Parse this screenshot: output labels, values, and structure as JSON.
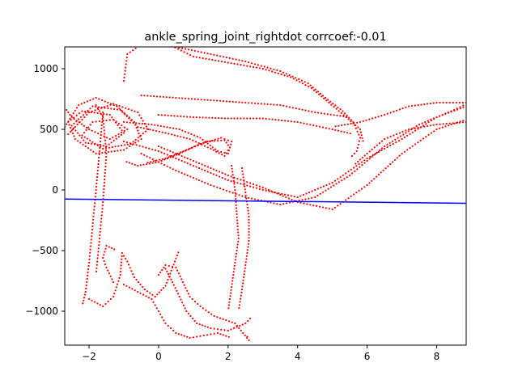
{
  "chart_data": {
    "type": "scatter",
    "title": "ankle_spring_joint_rightdot corrcoef:-0.01",
    "xlabel": "",
    "ylabel": "",
    "xlim": [
      -2.7,
      8.85
    ],
    "ylim": [
      -1280,
      1180
    ],
    "x_ticks": [
      {
        "v": -2,
        "label": "−2"
      },
      {
        "v": 0,
        "label": "0"
      },
      {
        "v": 2,
        "label": "2"
      },
      {
        "v": 4,
        "label": "4"
      },
      {
        "v": 6,
        "label": "6"
      },
      {
        "v": 8,
        "label": "8"
      }
    ],
    "y_ticks": [
      {
        "v": -1000,
        "label": "−1000"
      },
      {
        "v": -500,
        "label": "−500"
      },
      {
        "v": 0,
        "label": "0"
      },
      {
        "v": 500,
        "label": "500"
      },
      {
        "v": 1000,
        "label": "1000"
      }
    ],
    "grid": false,
    "point_color": "#ff0000",
    "line_color": "#0000ff",
    "fit_line": {
      "x": [
        -2.7,
        8.85
      ],
      "y": [
        -75,
        -110
      ]
    },
    "scatter_paths": [
      {
        "name": "upper-left-loops",
        "points": [
          [
            -2.7,
            520
          ],
          [
            -2.3,
            700
          ],
          [
            -1.8,
            760
          ],
          [
            -1.2,
            690
          ],
          [
            -0.7,
            560
          ],
          [
            -0.5,
            420
          ],
          [
            -1.0,
            330
          ],
          [
            -1.8,
            300
          ],
          [
            -2.4,
            420
          ],
          [
            -2.6,
            560
          ],
          [
            -2.2,
            650
          ],
          [
            -1.4,
            620
          ],
          [
            -1.0,
            470
          ],
          [
            -1.5,
            360
          ],
          [
            -2.1,
            390
          ],
          [
            -2.5,
            530
          ],
          [
            -1.9,
            690
          ],
          [
            -1.1,
            660
          ],
          [
            -0.6,
            520
          ]
        ]
      },
      {
        "name": "upper-left-loops-2",
        "points": [
          [
            -2.6,
            460
          ],
          [
            -2.0,
            640
          ],
          [
            -1.3,
            710
          ],
          [
            -0.6,
            640
          ],
          [
            -0.3,
            500
          ],
          [
            -0.8,
            380
          ],
          [
            -1.6,
            340
          ],
          [
            -2.2,
            450
          ],
          [
            -1.9,
            560
          ],
          [
            -1.3,
            580
          ],
          [
            -0.9,
            500
          ],
          [
            -1.4,
            420
          ],
          [
            -2.0,
            500
          ],
          [
            -2.5,
            600
          ],
          [
            -2.7,
            680
          ]
        ]
      },
      {
        "name": "loop-to-2",
        "points": [
          [
            -1.0,
            560
          ],
          [
            -0.2,
            540
          ],
          [
            0.6,
            500
          ],
          [
            1.2,
            430
          ],
          [
            1.7,
            320
          ],
          [
            2.0,
            300
          ],
          [
            2.1,
            400
          ],
          [
            1.8,
            430
          ],
          [
            1.2,
            380
          ],
          [
            0.6,
            300
          ],
          [
            0.0,
            230
          ],
          [
            -0.6,
            200
          ],
          [
            -1.0,
            240
          ]
        ]
      },
      {
        "name": "loop-to-2b",
        "points": [
          [
            -0.6,
            520
          ],
          [
            0.2,
            470
          ],
          [
            0.9,
            420
          ],
          [
            1.5,
            340
          ],
          [
            1.9,
            280
          ],
          [
            2.05,
            350
          ],
          [
            1.9,
            410
          ],
          [
            1.4,
            400
          ],
          [
            0.8,
            330
          ],
          [
            0.2,
            260
          ],
          [
            -0.4,
            220
          ]
        ]
      },
      {
        "name": "top-arc-1",
        "points": [
          [
            -1.0,
            900
          ],
          [
            -0.9,
            1120
          ],
          [
            -0.5,
            1200
          ],
          [
            0.5,
            1180
          ],
          [
            1.5,
            1120
          ],
          [
            2.5,
            1060
          ],
          [
            3.5,
            980
          ],
          [
            4.3,
            880
          ],
          [
            4.8,
            760
          ],
          [
            5.3,
            650
          ],
          [
            5.6,
            560
          ],
          [
            5.8,
            430
          ],
          [
            5.7,
            320
          ],
          [
            5.5,
            260
          ]
        ]
      },
      {
        "name": "top-arc-2",
        "points": [
          [
            0.3,
            1200
          ],
          [
            1.0,
            1100
          ],
          [
            2.0,
            1050
          ],
          [
            3.0,
            1000
          ],
          [
            3.8,
            930
          ],
          [
            4.4,
            840
          ],
          [
            4.9,
            720
          ],
          [
            5.4,
            600
          ],
          [
            5.8,
            500
          ],
          [
            5.9,
            380
          ]
        ]
      },
      {
        "name": "mid-band-1",
        "points": [
          [
            -0.5,
            780
          ],
          [
            0.5,
            760
          ],
          [
            1.5,
            740
          ],
          [
            2.5,
            720
          ],
          [
            3.5,
            700
          ],
          [
            4.5,
            640
          ],
          [
            5.5,
            600
          ]
        ]
      },
      {
        "name": "mid-band-2",
        "points": [
          [
            0.0,
            620
          ],
          [
            1.0,
            600
          ],
          [
            2.0,
            590
          ],
          [
            3.0,
            590
          ],
          [
            4.0,
            560
          ],
          [
            5.0,
            500
          ],
          [
            5.6,
            460
          ]
        ]
      },
      {
        "name": "to-right-1",
        "points": [
          [
            -1.0,
            400
          ],
          [
            0.0,
            320
          ],
          [
            1.0,
            200
          ],
          [
            2.0,
            80
          ],
          [
            3.0,
            0
          ],
          [
            4.0,
            -60
          ],
          [
            5.0,
            60
          ],
          [
            6.0,
            260
          ],
          [
            7.0,
            420
          ],
          [
            8.0,
            600
          ],
          [
            8.85,
            690
          ]
        ]
      },
      {
        "name": "to-right-2",
        "points": [
          [
            -0.5,
            300
          ],
          [
            0.5,
            160
          ],
          [
            1.5,
            40
          ],
          [
            2.5,
            -60
          ],
          [
            3.5,
            -120
          ],
          [
            4.5,
            -60
          ],
          [
            5.5,
            120
          ],
          [
            6.5,
            360
          ],
          [
            7.5,
            540
          ],
          [
            8.5,
            660
          ],
          [
            8.85,
            710
          ]
        ]
      },
      {
        "name": "to-right-3",
        "points": [
          [
            0.0,
            360
          ],
          [
            1.0,
            240
          ],
          [
            2.0,
            120
          ],
          [
            3.0,
            20
          ],
          [
            4.0,
            -100
          ],
          [
            5.0,
            -160
          ],
          [
            6.0,
            40
          ],
          [
            7.0,
            300
          ],
          [
            8.0,
            500
          ],
          [
            8.85,
            580
          ]
        ]
      },
      {
        "name": "right-return-1",
        "points": [
          [
            8.85,
            720
          ],
          [
            8.0,
            720
          ],
          [
            7.2,
            690
          ],
          [
            6.5,
            620
          ],
          [
            5.8,
            560
          ],
          [
            5.0,
            520
          ]
        ]
      },
      {
        "name": "right-return-2",
        "points": [
          [
            8.85,
            560
          ],
          [
            8.0,
            540
          ],
          [
            7.2,
            500
          ],
          [
            6.5,
            420
          ],
          [
            6.0,
            300
          ],
          [
            5.6,
            200
          ]
        ]
      },
      {
        "name": "lower-descent-1",
        "points": [
          [
            -1.6,
            640
          ],
          [
            -1.7,
            320
          ],
          [
            -1.8,
            0
          ],
          [
            -1.9,
            -300
          ],
          [
            -2.0,
            -600
          ],
          [
            -2.1,
            -840
          ],
          [
            -2.2,
            -960
          ]
        ]
      },
      {
        "name": "lower-descent-2",
        "points": [
          [
            -2.0,
            -900
          ],
          [
            -1.6,
            -960
          ],
          [
            -1.3,
            -880
          ],
          [
            -1.1,
            -700
          ],
          [
            -1.05,
            -520
          ],
          [
            -0.9,
            -590
          ],
          [
            -0.7,
            -720
          ],
          [
            -0.4,
            -820
          ],
          [
            -0.1,
            -880
          ],
          [
            0.2,
            -790
          ],
          [
            0.4,
            -640
          ],
          [
            0.6,
            -490
          ]
        ]
      },
      {
        "name": "lower-descent-3",
        "points": [
          [
            -1.3,
            -760
          ],
          [
            -1.5,
            -640
          ],
          [
            -1.6,
            -560
          ],
          [
            -1.5,
            -460
          ],
          [
            -1.2,
            -500
          ]
        ]
      },
      {
        "name": "lower-cluster-1",
        "points": [
          [
            -1.0,
            -780
          ],
          [
            -0.6,
            -840
          ],
          [
            -0.2,
            -900
          ],
          [
            0.0,
            -1000
          ],
          [
            0.2,
            -1100
          ],
          [
            0.5,
            -1180
          ],
          [
            0.9,
            -1220
          ],
          [
            1.3,
            -1200
          ],
          [
            1.7,
            -1180
          ],
          [
            2.1,
            -1220
          ]
        ]
      },
      {
        "name": "lower-cluster-2",
        "points": [
          [
            0.2,
            -650
          ],
          [
            0.4,
            -760
          ],
          [
            0.6,
            -880
          ],
          [
            0.8,
            -1000
          ],
          [
            1.1,
            -1100
          ],
          [
            1.5,
            -1140
          ],
          [
            2.0,
            -1160
          ],
          [
            2.5,
            -1100
          ],
          [
            2.7,
            -1040
          ]
        ]
      },
      {
        "name": "lower-cluster-3",
        "points": [
          [
            0.0,
            -700
          ],
          [
            0.2,
            -620
          ],
          [
            0.5,
            -640
          ],
          [
            0.7,
            -760
          ],
          [
            0.9,
            -880
          ],
          [
            1.2,
            -960
          ],
          [
            1.6,
            -1040
          ],
          [
            2.2,
            -1100
          ],
          [
            2.6,
            -1240
          ],
          [
            2.5,
            -1180
          ]
        ]
      },
      {
        "name": "vertical-bridge-1",
        "points": [
          [
            2.1,
            200
          ],
          [
            2.2,
            0
          ],
          [
            2.25,
            -200
          ],
          [
            2.3,
            -400
          ],
          [
            2.2,
            -600
          ],
          [
            2.1,
            -800
          ],
          [
            2.0,
            -1000
          ]
        ]
      },
      {
        "name": "vertical-bridge-2",
        "points": [
          [
            2.4,
            180
          ],
          [
            2.5,
            -20
          ],
          [
            2.6,
            -220
          ],
          [
            2.6,
            -420
          ],
          [
            2.5,
            -620
          ],
          [
            2.4,
            -820
          ],
          [
            2.3,
            -1000
          ]
        ]
      },
      {
        "name": "vertical-bridge-3",
        "points": [
          [
            -1.8,
            700
          ],
          [
            -1.6,
            600
          ],
          [
            -1.5,
            300
          ],
          [
            -1.6,
            -100
          ],
          [
            -1.7,
            -400
          ],
          [
            -1.8,
            -700
          ]
        ]
      }
    ]
  }
}
